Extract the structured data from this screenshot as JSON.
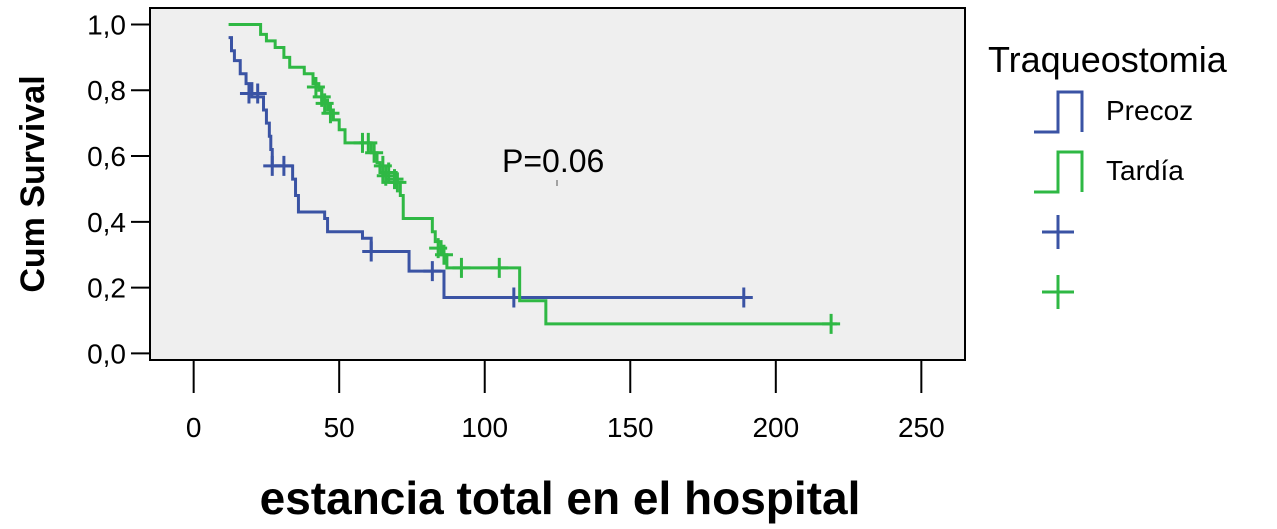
{
  "chart_data": {
    "type": "line",
    "subtype": "kaplan-meier",
    "title": "",
    "xlabel": "estancia total en el hospital",
    "ylabel": "Cum Survival",
    "xlim": [
      -15,
      265
    ],
    "ylim": [
      -0.02,
      1.05
    ],
    "xticks": [
      0,
      50,
      100,
      150,
      200,
      250
    ],
    "xtick_labels": [
      "0",
      "50",
      "100",
      "150",
      "200",
      "250"
    ],
    "yticks": [
      0.0,
      0.2,
      0.4,
      0.6,
      0.8,
      1.0
    ],
    "ytick_labels": [
      "0,0",
      "0,2",
      "0,4",
      "0,6",
      "0,8",
      "1,0"
    ],
    "grid": false,
    "plot_background": "#efefef",
    "legend": {
      "title": "Traqueostomia",
      "position": "right",
      "entries": [
        "Precoz",
        "Tardía",
        "",
        ""
      ]
    },
    "annotation": "P=0.06",
    "series": [
      {
        "name": "Precoz",
        "color": "#3a53a4",
        "steps": [
          [
            12,
            0.96
          ],
          [
            13,
            0.92
          ],
          [
            14,
            0.89
          ],
          [
            16,
            0.85
          ],
          [
            18,
            0.82
          ],
          [
            20,
            0.78
          ],
          [
            24,
            0.74
          ],
          [
            25,
            0.7
          ],
          [
            26,
            0.66
          ],
          [
            26.5,
            0.62
          ],
          [
            27,
            0.57
          ],
          [
            34,
            0.53
          ],
          [
            35,
            0.48
          ],
          [
            36,
            0.43
          ],
          [
            45,
            0.41
          ],
          [
            46,
            0.37
          ],
          [
            58,
            0.35
          ],
          [
            61,
            0.31
          ],
          [
            74,
            0.25
          ],
          [
            86,
            0.17
          ],
          [
            120,
            0.17
          ],
          [
            191,
            0.17
          ]
        ],
        "censored": [
          [
            19,
            0.79
          ],
          [
            22,
            0.79
          ],
          [
            27,
            0.57
          ],
          [
            31,
            0.57
          ],
          [
            61,
            0.31
          ],
          [
            82,
            0.25
          ],
          [
            110,
            0.17
          ],
          [
            189,
            0.17
          ]
        ]
      },
      {
        "name": "Tardía",
        "color": "#2fb844",
        "steps": [
          [
            12,
            1.0
          ],
          [
            23,
            0.97
          ],
          [
            25,
            0.95
          ],
          [
            28,
            0.93
          ],
          [
            31,
            0.9
          ],
          [
            33,
            0.87
          ],
          [
            38,
            0.85
          ],
          [
            41,
            0.82
          ],
          [
            43,
            0.8
          ],
          [
            44,
            0.77
          ],
          [
            46,
            0.74
          ],
          [
            48,
            0.71
          ],
          [
            50,
            0.68
          ],
          [
            52,
            0.64
          ],
          [
            61,
            0.61
          ],
          [
            63,
            0.58
          ],
          [
            64,
            0.55
          ],
          [
            65,
            0.52
          ],
          [
            71,
            0.48
          ],
          [
            72,
            0.41
          ],
          [
            82,
            0.37
          ],
          [
            83,
            0.34
          ],
          [
            85,
            0.3
          ],
          [
            87,
            0.26
          ],
          [
            112,
            0.16
          ],
          [
            121,
            0.09
          ],
          [
            221,
            0.09
          ]
        ],
        "censored": [
          [
            42,
            0.81
          ],
          [
            44,
            0.78
          ],
          [
            45,
            0.76
          ],
          [
            47,
            0.73
          ],
          [
            58,
            0.64
          ],
          [
            60,
            0.64
          ],
          [
            62,
            0.61
          ],
          [
            65,
            0.57
          ],
          [
            66,
            0.54
          ],
          [
            67,
            0.55
          ],
          [
            69,
            0.53
          ],
          [
            70,
            0.52
          ],
          [
            84,
            0.32
          ],
          [
            86,
            0.3
          ],
          [
            92,
            0.26
          ],
          [
            105,
            0.26
          ],
          [
            219,
            0.09
          ]
        ]
      }
    ]
  }
}
